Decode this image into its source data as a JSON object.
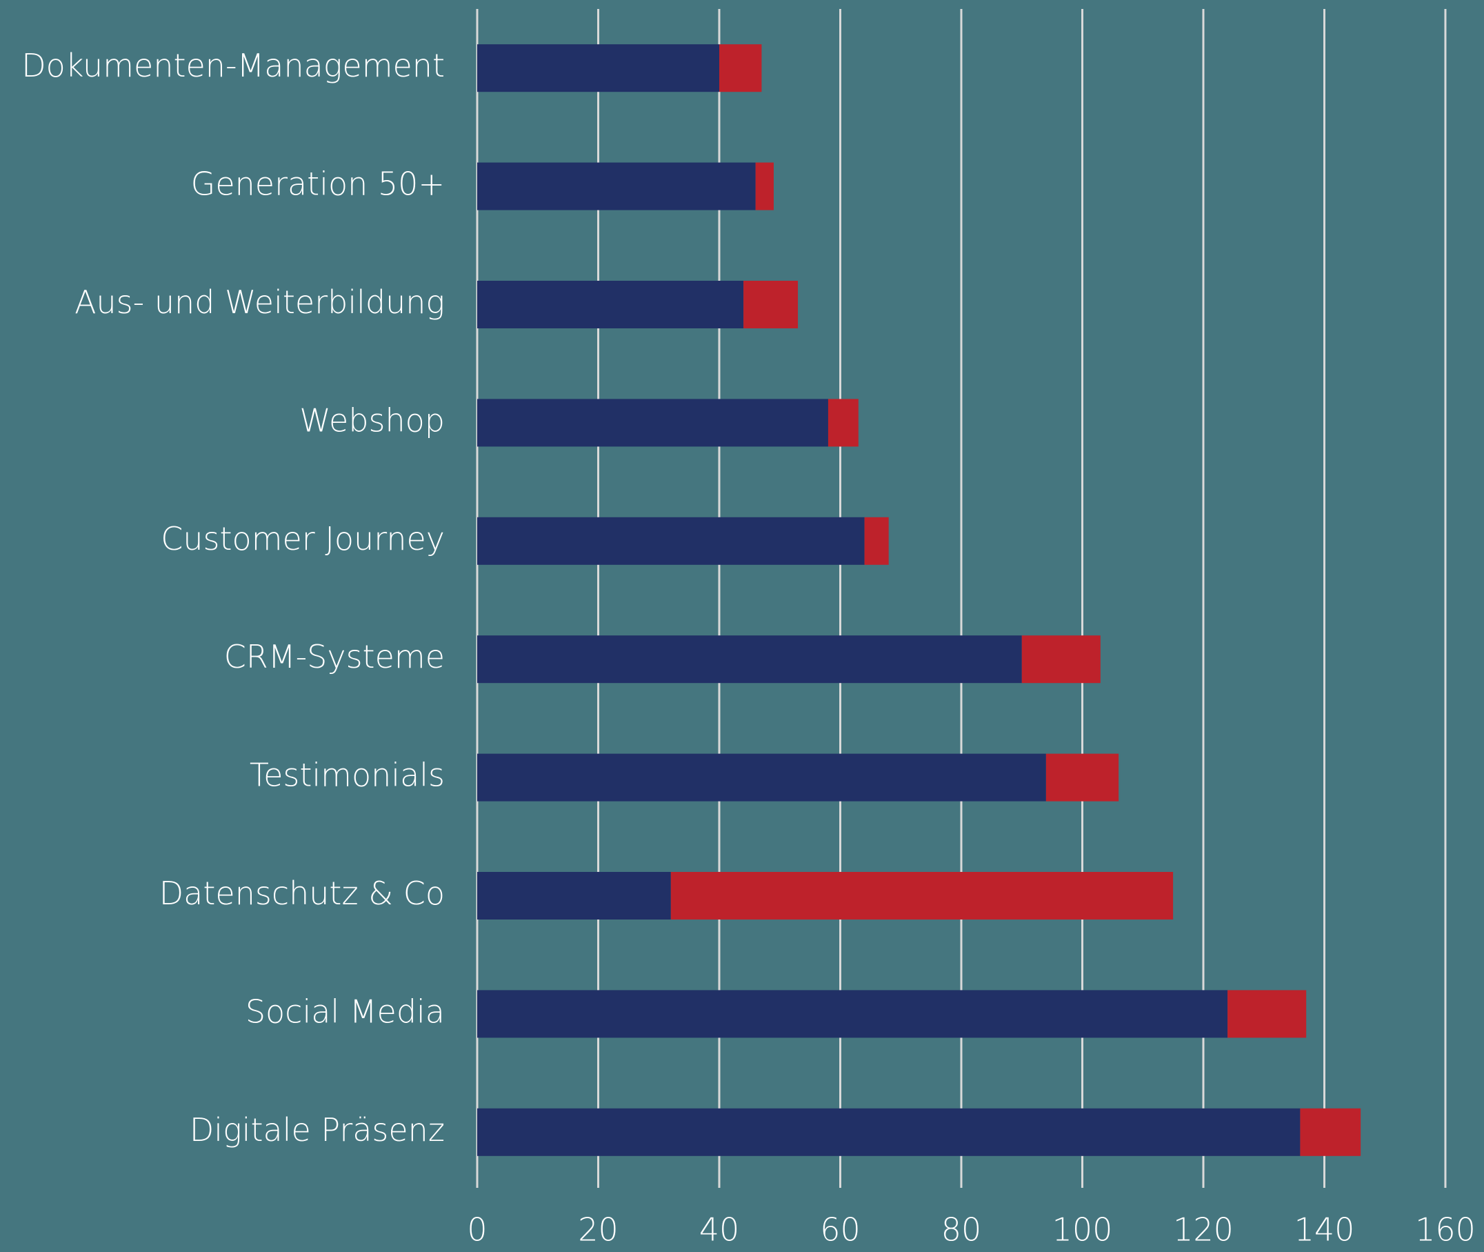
{
  "chart_data": {
    "type": "stacked_hbar",
    "categories": [
      "Dokumenten-Management",
      "Generation 50+",
      "Aus- und Weiterbildung",
      "Webshop",
      "Customer Journey",
      "CRM-Systeme",
      "Testimonials",
      "Datenschutz & Co",
      "Social Media",
      "Digitale Präsenz"
    ],
    "series": [
      {
        "color": "#213066",
        "values": [
          40,
          46,
          44,
          58,
          64,
          90,
          94,
          32,
          124,
          136
        ]
      },
      {
        "color": "#be222b",
        "values": [
          7,
          3,
          9,
          5,
          4,
          13,
          12,
          83,
          13,
          10
        ]
      }
    ],
    "xlim": [
      0,
      160
    ],
    "xticks": [
      0,
      20,
      40,
      60,
      80,
      100,
      120,
      140,
      160
    ],
    "grid": true
  }
}
